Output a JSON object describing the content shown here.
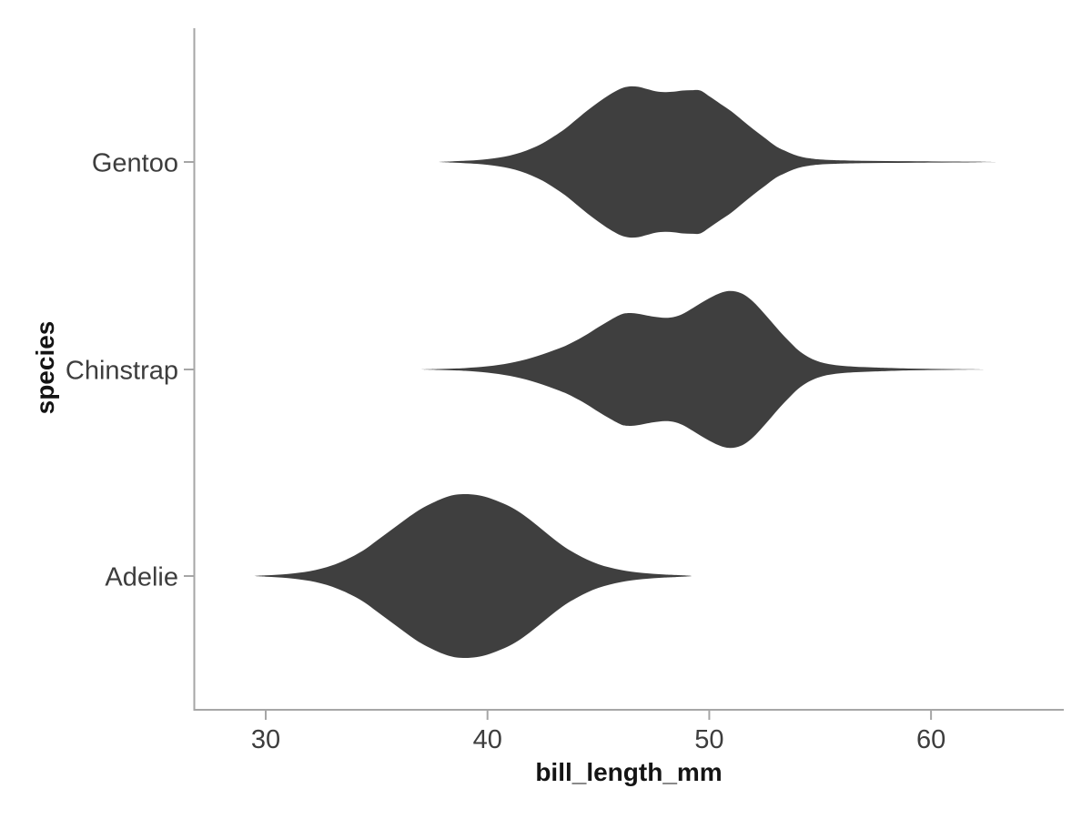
{
  "chart_data": {
    "type": "violin",
    "orientation": "horizontal",
    "title": "",
    "xlabel": "bill_length_mm",
    "ylabel": "species",
    "xlim": [
      26.8,
      66.0
    ],
    "x_ticks": [
      30,
      40,
      50,
      60
    ],
    "x_tick_labels": [
      "30",
      "40",
      "50",
      "60"
    ],
    "categories": [
      "Gentoo",
      "Chinstrap",
      "Adelie"
    ],
    "grid": "off",
    "legend": "none",
    "series": [
      {
        "name": "Gentoo",
        "x_range": [
          37.8,
          63.0
        ],
        "modes": [
          46.4,
          49.2
        ],
        "kde": [
          [
            37.8,
            0
          ],
          [
            38.4,
            0.008
          ],
          [
            39,
            0.016
          ],
          [
            39.5,
            0.024
          ],
          [
            40,
            0.038
          ],
          [
            40.5,
            0.058
          ],
          [
            41,
            0.085
          ],
          [
            41.5,
            0.125
          ],
          [
            42,
            0.18
          ],
          [
            42.5,
            0.25
          ],
          [
            43,
            0.34
          ],
          [
            43.5,
            0.44
          ],
          [
            44,
            0.56
          ],
          [
            44.5,
            0.68
          ],
          [
            45,
            0.79
          ],
          [
            45.5,
            0.89
          ],
          [
            46,
            0.97
          ],
          [
            46.4,
            1.0
          ],
          [
            46.8,
            0.995
          ],
          [
            47.2,
            0.965
          ],
          [
            47.6,
            0.935
          ],
          [
            48,
            0.925
          ],
          [
            48.4,
            0.93
          ],
          [
            48.8,
            0.945
          ],
          [
            49.2,
            0.95
          ],
          [
            49.6,
            0.945
          ],
          [
            50,
            0.87
          ],
          [
            50.5,
            0.77
          ],
          [
            51,
            0.67
          ],
          [
            51.5,
            0.55
          ],
          [
            52,
            0.43
          ],
          [
            52.5,
            0.32
          ],
          [
            53,
            0.21
          ],
          [
            53.4,
            0.15
          ],
          [
            53.8,
            0.1
          ],
          [
            54.2,
            0.065
          ],
          [
            54.6,
            0.045
          ],
          [
            55,
            0.033
          ],
          [
            55.5,
            0.026
          ],
          [
            56,
            0.021
          ],
          [
            57,
            0.015
          ],
          [
            58,
            0.012
          ],
          [
            59,
            0.01
          ],
          [
            60,
            0.008
          ],
          [
            61,
            0.006
          ],
          [
            62,
            0.004
          ],
          [
            62.5,
            0.002
          ],
          [
            63,
            0
          ]
        ]
      },
      {
        "name": "Chinstrap",
        "x_range": [
          37.0,
          62.4
        ],
        "modes": [
          46.3,
          50.8
        ],
        "kde": [
          [
            37,
            0
          ],
          [
            37.8,
            0.006
          ],
          [
            38.5,
            0.012
          ],
          [
            39,
            0.018
          ],
          [
            39.5,
            0.027
          ],
          [
            40,
            0.04
          ],
          [
            40.5,
            0.058
          ],
          [
            41,
            0.082
          ],
          [
            41.5,
            0.112
          ],
          [
            42,
            0.15
          ],
          [
            42.5,
            0.195
          ],
          [
            43,
            0.245
          ],
          [
            43.5,
            0.3
          ],
          [
            44,
            0.37
          ],
          [
            44.5,
            0.45
          ],
          [
            45,
            0.54
          ],
          [
            45.5,
            0.625
          ],
          [
            46,
            0.7
          ],
          [
            46.3,
            0.72
          ],
          [
            46.7,
            0.715
          ],
          [
            47.1,
            0.695
          ],
          [
            47.5,
            0.675
          ],
          [
            48,
            0.66
          ],
          [
            48.4,
            0.67
          ],
          [
            48.8,
            0.71
          ],
          [
            49.2,
            0.775
          ],
          [
            49.6,
            0.845
          ],
          [
            50,
            0.91
          ],
          [
            50.4,
            0.965
          ],
          [
            50.8,
            1.0
          ],
          [
            51.2,
            0.995
          ],
          [
            51.6,
            0.95
          ],
          [
            52,
            0.86
          ],
          [
            52.4,
            0.74
          ],
          [
            52.8,
            0.61
          ],
          [
            53.2,
            0.48
          ],
          [
            53.6,
            0.36
          ],
          [
            54,
            0.25
          ],
          [
            54.4,
            0.17
          ],
          [
            54.8,
            0.115
          ],
          [
            55.2,
            0.08
          ],
          [
            55.6,
            0.06
          ],
          [
            56,
            0.047
          ],
          [
            56.5,
            0.037
          ],
          [
            57,
            0.03
          ],
          [
            57.5,
            0.025
          ],
          [
            58,
            0.02
          ],
          [
            59,
            0.012
          ],
          [
            60,
            0.007
          ],
          [
            61,
            0.004
          ],
          [
            62,
            0.002
          ],
          [
            62.4,
            0
          ]
        ]
      },
      {
        "name": "Adelie",
        "x_range": [
          29.5,
          49.2
        ],
        "modes": [
          39.0
        ],
        "kde": [
          [
            29.5,
            0
          ],
          [
            30,
            0.008
          ],
          [
            30.5,
            0.015
          ],
          [
            31,
            0.025
          ],
          [
            31.5,
            0.04
          ],
          [
            32,
            0.06
          ],
          [
            32.5,
            0.09
          ],
          [
            33,
            0.13
          ],
          [
            33.5,
            0.185
          ],
          [
            34,
            0.25
          ],
          [
            34.5,
            0.33
          ],
          [
            35,
            0.43
          ],
          [
            35.5,
            0.53
          ],
          [
            36,
            0.63
          ],
          [
            36.5,
            0.73
          ],
          [
            37,
            0.82
          ],
          [
            37.5,
            0.89
          ],
          [
            38,
            0.95
          ],
          [
            38.5,
            0.99
          ],
          [
            39,
            1.0
          ],
          [
            39.5,
            0.99
          ],
          [
            40,
            0.96
          ],
          [
            40.5,
            0.91
          ],
          [
            41,
            0.85
          ],
          [
            41.5,
            0.77
          ],
          [
            42,
            0.67
          ],
          [
            42.5,
            0.56
          ],
          [
            43,
            0.45
          ],
          [
            43.5,
            0.35
          ],
          [
            44,
            0.27
          ],
          [
            44.5,
            0.2
          ],
          [
            45,
            0.145
          ],
          [
            45.5,
            0.105
          ],
          [
            46,
            0.075
          ],
          [
            46.5,
            0.053
          ],
          [
            47,
            0.037
          ],
          [
            47.5,
            0.026
          ],
          [
            48,
            0.018
          ],
          [
            48.5,
            0.012
          ],
          [
            49.2,
            0
          ]
        ]
      }
    ],
    "style": {
      "violin_fill": "#3f3f3f",
      "axis_line_color": "#a6a6a6",
      "tick_label_color": "#3d3d3d",
      "axis_title_color": "#141414",
      "background": "#ffffff"
    }
  }
}
